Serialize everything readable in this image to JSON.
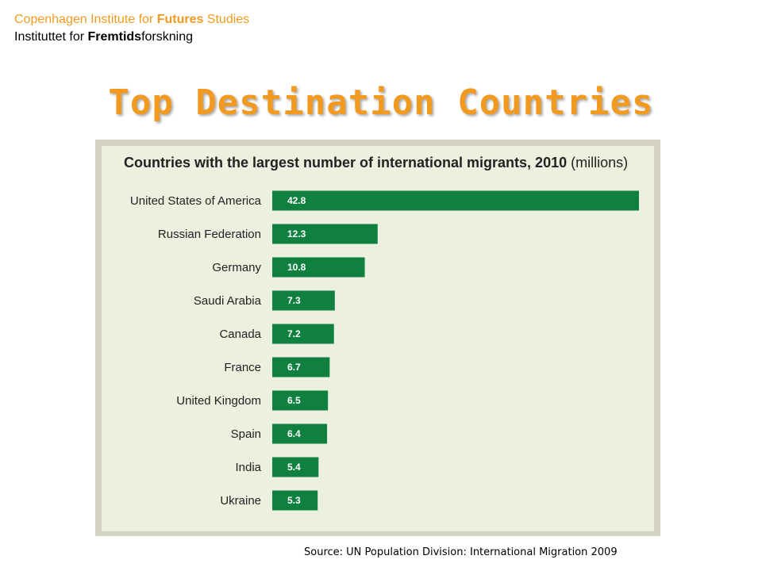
{
  "header": {
    "org_en_prefix": "Copenhagen Institute for ",
    "org_en_bold": "Futures",
    "org_en_suffix": " Studies",
    "org_da_prefix": "Instituttet for ",
    "org_da_bold": "Fremtids",
    "org_da_suffix": "forskning"
  },
  "slide_title": "Top Destination Countries",
  "source_note": "Source: UN Population Division: International Migration 2009",
  "colors": {
    "accent_orange": "#f29a1f",
    "bar_green": "#0f8040",
    "panel_background": "#ecf0df"
  },
  "chart_data": {
    "type": "bar",
    "orientation": "horizontal",
    "title": "Countries with the largest number of international migrants, 2010",
    "title_unit": "(millions)",
    "categories": [
      "United States of America",
      "Russian Federation",
      "Germany",
      "Saudi Arabia",
      "Canada",
      "France",
      "United Kingdom",
      "Spain",
      "India",
      "Ukraine"
    ],
    "values": [
      42.8,
      12.3,
      10.8,
      7.3,
      7.2,
      6.7,
      6.5,
      6.4,
      5.4,
      5.3
    ],
    "value_labels": [
      "42.8",
      "12.3",
      "10.8",
      "7.3",
      "7.2",
      "6.7",
      "6.5",
      "6.4",
      "5.4",
      "5.3"
    ],
    "xlim": [
      0,
      42.8
    ],
    "grid": false,
    "legend": "none"
  }
}
